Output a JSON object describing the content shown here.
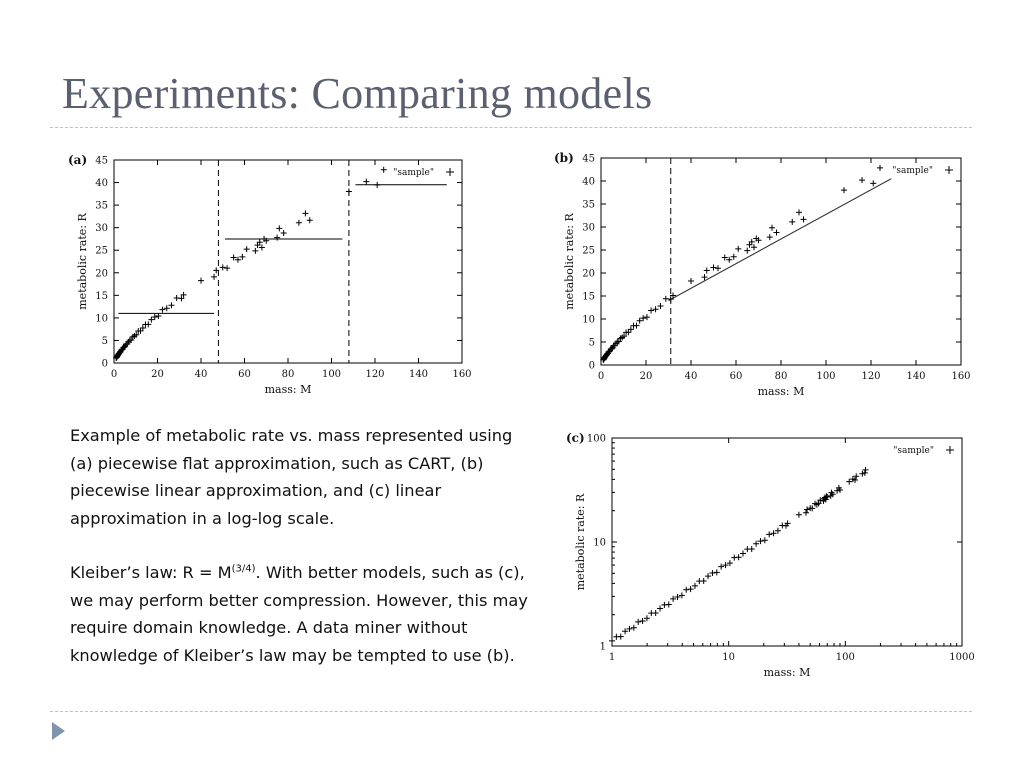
{
  "slide": {
    "title": "Experiments: Comparing models",
    "paragraph1": "Example of metabolic rate vs. mass represented using (a) piecewise flat approximation, such as CART, (b) piecewise linear approximation, and (c) linear approximation in a log-log scale.",
    "kleiber_prefix": "Kleiber’s law: R = M",
    "kleiber_exponent": "(3/4)",
    "kleiber_rest": ". With better models, such as (c), we may perform better compression. However, this may require domain knowledge. A data miner without knowledge of Kleiber’s law may be tempted to use (b)."
  },
  "chart_data": [
    {
      "panel": "(a)",
      "type": "scatter",
      "series": [
        {
          "name": "\"sample\"",
          "marker": "+"
        }
      ],
      "xlabel": "mass: M",
      "ylabel": "metabolic rate: R",
      "xlim": [
        0,
        160
      ],
      "ylim": [
        0,
        45
      ],
      "xticks": [
        0,
        20,
        40,
        60,
        80,
        100,
        120,
        140,
        160
      ],
      "yticks": [
        0,
        5,
        10,
        15,
        20,
        25,
        30,
        35,
        40,
        45
      ],
      "vertical_dashed_lines": [
        48,
        108
      ],
      "flat_segments": [
        {
          "x0": 2,
          "x1": 46,
          "y": 11
        },
        {
          "x0": 51,
          "x1": 105,
          "y": 27.5
        },
        {
          "x0": 111,
          "x1": 153,
          "y": 39.5
        }
      ],
      "legend_position": "top-right"
    },
    {
      "panel": "(b)",
      "type": "scatter",
      "series": [
        {
          "name": "\"sample\"",
          "marker": "+"
        }
      ],
      "xlabel": "mass: M",
      "ylabel": "metabolic rate: R",
      "xlim": [
        0,
        160
      ],
      "ylim": [
        0,
        45
      ],
      "xticks": [
        0,
        20,
        40,
        60,
        80,
        100,
        120,
        140,
        160
      ],
      "yticks": [
        0,
        5,
        10,
        15,
        20,
        25,
        30,
        35,
        40,
        45
      ],
      "vertical_dashed_lines": [
        31
      ],
      "linear_segments": [
        {
          "x0": 30,
          "y0": 14,
          "x1": 129,
          "y1": 40.5
        }
      ],
      "legend_position": "top-right"
    },
    {
      "panel": "(c)",
      "type": "scatter",
      "series": [
        {
          "name": "\"sample\"",
          "marker": "+"
        }
      ],
      "xlabel": "mass: M",
      "ylabel": "metabolic rate: R",
      "x_scale": "log",
      "y_scale": "log",
      "xlim": [
        1,
        1000
      ],
      "ylim": [
        1,
        100
      ],
      "xticks": [
        1,
        10,
        100,
        1000
      ],
      "yticks": [
        1,
        10,
        100
      ],
      "legend_position": "top-right"
    }
  ]
}
